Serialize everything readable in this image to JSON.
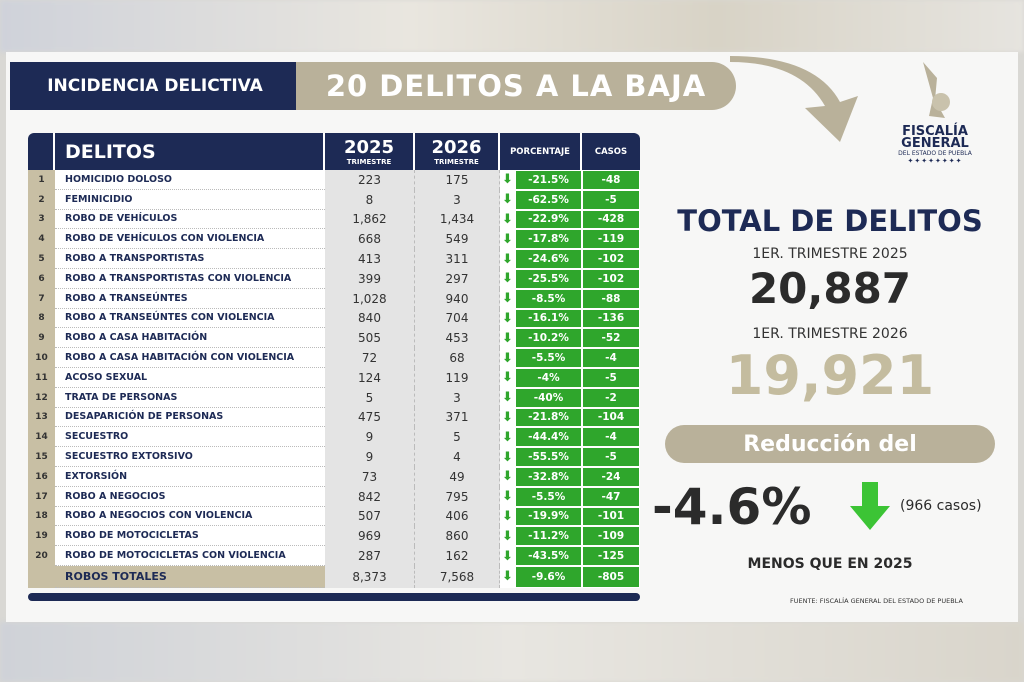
{
  "header": {
    "section": "INCIDENCIA DELICTIVA",
    "title": "20 DELITOS A LA BAJA"
  },
  "logo": {
    "line1": "FISCALÍA",
    "line2": "GENERAL",
    "line3": "DEL ESTADO DE PUEBLA"
  },
  "table": {
    "headers": {
      "delitos": "DELITOS",
      "y2025": "2025",
      "y2026": "2026",
      "sub": "TRIMESTRE",
      "pct": "PORCENTAJE",
      "casos": "CASOS"
    },
    "rows": [
      [
        "1",
        "HOMICIDIO DOLOSO",
        "223",
        "175",
        "-21.5%",
        "-48"
      ],
      [
        "2",
        "FEMINICIDIO",
        "8",
        "3",
        "-62.5%",
        "-5"
      ],
      [
        "3",
        "ROBO DE VEHÍCULOS",
        "1,862",
        "1,434",
        "-22.9%",
        "-428"
      ],
      [
        "4",
        "ROBO DE VEHÍCULOS CON VIOLENCIA",
        "668",
        "549",
        "-17.8%",
        "-119"
      ],
      [
        "5",
        "ROBO A TRANSPORTISTAS",
        "413",
        "311",
        "-24.6%",
        "-102"
      ],
      [
        "6",
        "ROBO A TRANSPORTISTAS CON VIOLENCIA",
        "399",
        "297",
        "-25.5%",
        "-102"
      ],
      [
        "7",
        "ROBO A TRANSEÚNTES",
        "1,028",
        "940",
        "-8.5%",
        "-88"
      ],
      [
        "8",
        "ROBO A TRANSEÚNTES CON VIOLENCIA",
        "840",
        "704",
        "-16.1%",
        "-136"
      ],
      [
        "9",
        "ROBO A CASA HABITACIÓN",
        "505",
        "453",
        "-10.2%",
        "-52"
      ],
      [
        "10",
        "ROBO A CASA HABITACIÓN CON VIOLENCIA",
        "72",
        "68",
        "-5.5%",
        "-4"
      ],
      [
        "11",
        "ACOSO SEXUAL",
        "124",
        "119",
        "-4%",
        "-5"
      ],
      [
        "12",
        "TRATA DE PERSONAS",
        "5",
        "3",
        "-40%",
        "-2"
      ],
      [
        "13",
        "DESAPARICIÓN DE PERSONAS",
        "475",
        "371",
        "-21.8%",
        "-104"
      ],
      [
        "14",
        "SECUESTRO",
        "9",
        "5",
        "-44.4%",
        "-4"
      ],
      [
        "15",
        "SECUESTRO EXTORSIVO",
        "9",
        "4",
        "-55.5%",
        "-5"
      ],
      [
        "16",
        "EXTORSIÓN",
        "73",
        "49",
        "-32.8%",
        "-24"
      ],
      [
        "17",
        "ROBO A NEGOCIOS",
        "842",
        "795",
        "-5.5%",
        "-47"
      ],
      [
        "18",
        "ROBO A NEGOCIOS CON VIOLENCIA",
        "507",
        "406",
        "-19.9%",
        "-101"
      ],
      [
        "19",
        "ROBO DE MOTOCICLETAS",
        "969",
        "860",
        "-11.2%",
        "-109"
      ],
      [
        "20",
        "ROBO DE MOTOCICLETAS CON VIOLENCIA",
        "287",
        "162",
        "-43.5%",
        "-125"
      ]
    ],
    "total": [
      "",
      "ROBOS TOTALES",
      "8,373",
      "7,568",
      "-9.6%",
      "-805"
    ]
  },
  "summary": {
    "title": "TOTAL DE DELITOS",
    "label2025": "1ER. TRIMESTRE 2025",
    "value2025": "20,887",
    "label2026": "1ER. TRIMESTRE 2026",
    "value2026": "19,921",
    "reduction_label": "Reducción del",
    "reduction": "-4.6%",
    "cases": "(966 casos)",
    "less": "MENOS QUE EN 2025",
    "source": "FUENTE: FISCALÍA GENERAL DEL ESTADO DE PUEBLA"
  },
  "colors": {
    "navy": "#1d2a55",
    "tan": "#b9b19a",
    "green": "#2fa62c"
  }
}
